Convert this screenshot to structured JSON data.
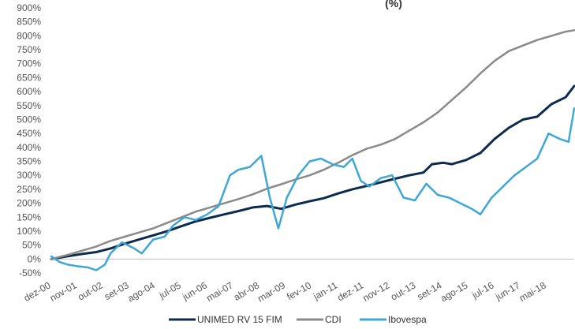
{
  "chart_data": {
    "type": "line",
    "title": "(%)",
    "xlabel": "",
    "ylabel": "",
    "ylim": [
      -50,
      900
    ],
    "y_ticks": [
      -50,
      0,
      50,
      100,
      150,
      200,
      250,
      300,
      350,
      400,
      450,
      500,
      550,
      600,
      650,
      700,
      750,
      800,
      850,
      900
    ],
    "y_tick_labels": [
      "-50%",
      "0%",
      "50%",
      "100%",
      "150%",
      "200%",
      "250%",
      "300%",
      "350%",
      "400%",
      "450%",
      "500%",
      "550%",
      "600%",
      "650%",
      "700%",
      "750%",
      "800%",
      "850%",
      "900%"
    ],
    "x_tick_labels": [
      "dez-00",
      "nov-01",
      "out-02",
      "set-03",
      "ago-04",
      "jul-05",
      "jun-06",
      "mai-07",
      "abr-08",
      "mar-09",
      "fev-10",
      "jan-11",
      "dez-11",
      "nov-12",
      "out-13",
      "set-14",
      "ago-15",
      "jul-16",
      "jun-17",
      "mai-18"
    ],
    "x_range": [
      2000.917,
      2019.3
    ],
    "x_ticks": [
      2000.917,
      2001.833,
      2002.75,
      2003.667,
      2004.583,
      2005.5,
      2006.417,
      2007.333,
      2008.25,
      2009.167,
      2010.083,
      2011.0,
      2011.917,
      2012.833,
      2013.75,
      2014.667,
      2015.583,
      2016.5,
      2017.417,
      2018.333
    ],
    "grid": false,
    "legend_position": "bottom",
    "series": [
      {
        "name": "UNIMED RV 15 FIM",
        "color": "#0d2b4e",
        "x": [
          2000.917,
          2001.5,
          2002.0,
          2002.5,
          2003.0,
          2003.5,
          2004.0,
          2004.5,
          2005.0,
          2005.5,
          2006.0,
          2006.5,
          2007.0,
          2007.5,
          2008.0,
          2008.5,
          2009.0,
          2009.5,
          2010.0,
          2010.5,
          2011.0,
          2011.5,
          2012.0,
          2012.5,
          2013.0,
          2013.5,
          2014.0,
          2014.3,
          2014.7,
          2015.0,
          2015.5,
          2016.0,
          2016.5,
          2017.0,
          2017.5,
          2018.0,
          2018.5,
          2019.0,
          2019.3
        ],
        "values": [
          0,
          10,
          18,
          25,
          38,
          55,
          70,
          85,
          100,
          118,
          135,
          148,
          160,
          172,
          185,
          190,
          180,
          195,
          207,
          218,
          235,
          250,
          262,
          275,
          288,
          300,
          310,
          340,
          345,
          340,
          355,
          380,
          430,
          470,
          500,
          510,
          555,
          580,
          620
        ]
      },
      {
        "name": "CDI",
        "color": "#8a8a8a",
        "x": [
          2000.917,
          2001.5,
          2002.0,
          2002.5,
          2003.0,
          2003.5,
          2004.0,
          2004.5,
          2005.0,
          2005.5,
          2006.0,
          2006.5,
          2007.0,
          2007.5,
          2008.0,
          2008.5,
          2009.0,
          2009.5,
          2010.0,
          2010.5,
          2011.0,
          2011.5,
          2012.0,
          2012.5,
          2013.0,
          2013.5,
          2014.0,
          2014.5,
          2015.0,
          2015.5,
          2016.0,
          2016.5,
          2017.0,
          2017.5,
          2018.0,
          2018.5,
          2019.0,
          2019.3
        ],
        "values": [
          0,
          15,
          30,
          45,
          65,
          80,
          95,
          110,
          130,
          150,
          170,
          185,
          200,
          215,
          232,
          252,
          268,
          285,
          300,
          320,
          345,
          372,
          395,
          410,
          430,
          460,
          490,
          525,
          570,
          615,
          665,
          710,
          745,
          765,
          785,
          800,
          815,
          820
        ]
      },
      {
        "name": "Ibovespa",
        "color": "#3fa7d6",
        "x": [
          2000.917,
          2001.2,
          2001.5,
          2001.8,
          2002.2,
          2002.5,
          2002.8,
          2003.0,
          2003.4,
          2003.8,
          2004.1,
          2004.5,
          2004.9,
          2005.2,
          2005.6,
          2006.0,
          2006.4,
          2006.8,
          2007.2,
          2007.5,
          2007.9,
          2008.3,
          2008.6,
          2008.9,
          2009.2,
          2009.6,
          2010.0,
          2010.4,
          2010.8,
          2011.2,
          2011.5,
          2011.8,
          2012.1,
          2012.5,
          2012.9,
          2013.3,
          2013.7,
          2014.1,
          2014.5,
          2014.9,
          2015.3,
          2015.7,
          2016.0,
          2016.4,
          2016.8,
          2017.2,
          2017.6,
          2018.0,
          2018.4,
          2018.8,
          2019.1,
          2019.3
        ],
        "values": [
          10,
          -10,
          -20,
          -25,
          -30,
          -40,
          -20,
          20,
          60,
          40,
          20,
          70,
          80,
          120,
          150,
          140,
          160,
          190,
          300,
          320,
          330,
          370,
          220,
          110,
          220,
          300,
          350,
          360,
          340,
          330,
          360,
          280,
          260,
          290,
          300,
          220,
          210,
          270,
          230,
          220,
          200,
          180,
          160,
          220,
          260,
          300,
          330,
          360,
          450,
          430,
          420,
          540
        ]
      }
    ]
  }
}
